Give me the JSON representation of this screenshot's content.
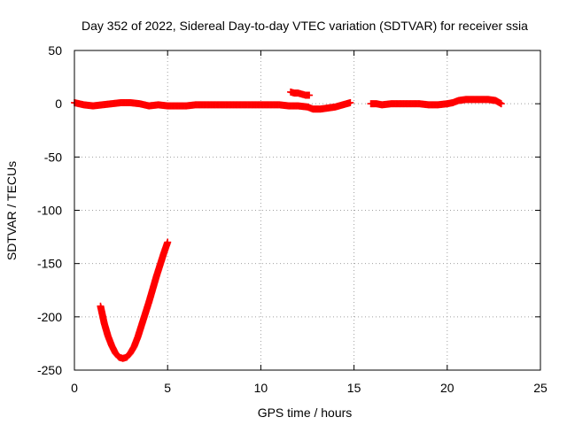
{
  "chart_data": {
    "type": "scatter",
    "title": "Day 352 of 2022, Sidereal Day-to-day VTEC variation (SDTVAR) for receiver ssia",
    "xlabel": "GPS time / hours",
    "ylabel": "SDTVAR / TECUs",
    "xlim": [
      0,
      25
    ],
    "ylim": [
      -250,
      50
    ],
    "xticks": [
      "0",
      "5",
      "10",
      "15",
      "20",
      "25"
    ],
    "yticks": [
      "50",
      "0",
      "-50",
      "-100",
      "-150",
      "-200",
      "-250"
    ],
    "grid": true,
    "marker": "plus",
    "color": "#ff0000",
    "series": [
      {
        "x": [
          0.0,
          0.5,
          1.0,
          1.5,
          2.0,
          2.5,
          3.0,
          3.5,
          4.0,
          4.5,
          5.0,
          5.5,
          6.0,
          6.5,
          7.0,
          7.5,
          8.0,
          8.5,
          9.0,
          9.5,
          10.0,
          10.5,
          11.0,
          11.5,
          12.0,
          12.5,
          12.8,
          13.2,
          13.6,
          14.0,
          14.4,
          14.8
        ],
        "y": [
          1,
          -1,
          -2,
          -1,
          0,
          1,
          1,
          0,
          -2,
          -1,
          -2,
          -2,
          -2,
          -1,
          -1,
          -1,
          -1,
          -1,
          -1,
          -1,
          -1,
          -1,
          -1,
          -2,
          -2,
          -3,
          -5,
          -5,
          -4,
          -3,
          -1,
          1
        ]
      },
      {
        "x": [
          11.6,
          11.8,
          12.0,
          12.2,
          12.4,
          12.6
        ],
        "y": [
          11,
          10,
          10,
          9,
          8,
          8
        ]
      },
      {
        "x": [
          15.9,
          16.2,
          16.5,
          17.0,
          17.5,
          18.0,
          18.5,
          19.0,
          19.5,
          20.0,
          20.3,
          20.6,
          21.0,
          21.4,
          21.8,
          22.2,
          22.6,
          22.9
        ],
        "y": [
          0,
          0,
          -1,
          0,
          0,
          0,
          0,
          -1,
          -1,
          0,
          1,
          3,
          4,
          4,
          4,
          4,
          3,
          0
        ]
      },
      {
        "x": [
          1.4,
          1.6,
          1.8,
          2.0,
          2.2,
          2.4,
          2.6,
          2.8,
          3.0,
          3.2,
          3.4,
          3.6,
          3.8,
          4.0,
          4.2,
          4.4,
          4.6,
          4.8,
          5.0
        ],
        "y": [
          -190,
          -206,
          -218,
          -227,
          -234,
          -238,
          -239,
          -238,
          -234,
          -228,
          -219,
          -208,
          -197,
          -186,
          -174,
          -162,
          -151,
          -140,
          -130
        ]
      }
    ]
  }
}
